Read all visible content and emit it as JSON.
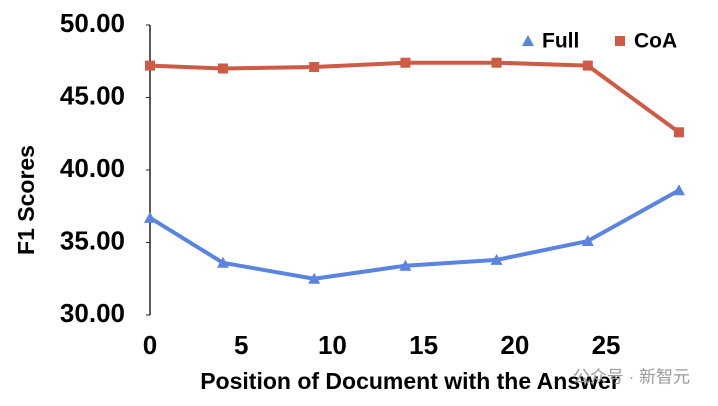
{
  "chart_data": {
    "type": "line",
    "x_label": "Position of Document with the Answer",
    "y_label": "F1 Scores",
    "x": [
      0,
      4,
      9,
      14,
      19,
      24,
      29
    ],
    "series": [
      {
        "name": "Full",
        "color": "#5b84e0",
        "marker": "triangle",
        "values": [
          36.7,
          33.6,
          32.5,
          33.4,
          33.8,
          35.1,
          38.6
        ]
      },
      {
        "name": "CoA",
        "color": "#cd5b45",
        "marker": "square",
        "values": [
          47.2,
          47.0,
          47.1,
          47.4,
          47.4,
          47.2,
          42.6
        ]
      }
    ],
    "xlim": [
      0,
      29
    ],
    "xticks": [
      0,
      5,
      10,
      15,
      20,
      25
    ],
    "ylim": [
      30,
      50
    ],
    "yticks": [
      {
        "value": 30,
        "label": "30.00"
      },
      {
        "value": 35,
        "label": "35.00"
      },
      {
        "value": 40,
        "label": "40.00"
      },
      {
        "value": 45,
        "label": "45.00"
      },
      {
        "value": 50,
        "label": "50.00"
      }
    ],
    "grid": false,
    "legend": "top-right",
    "watermark": "公众号 · 新智元"
  }
}
